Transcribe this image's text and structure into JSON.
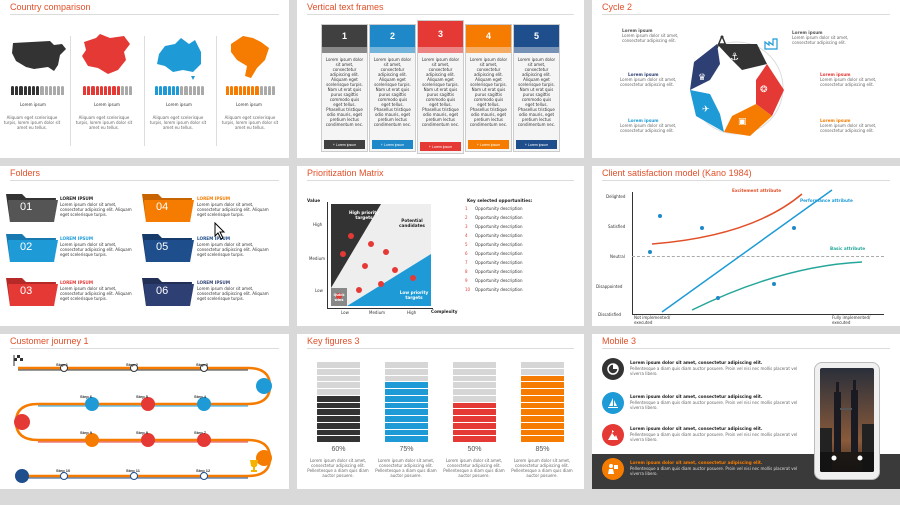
{
  "slides": [
    {
      "title": "Country comparison",
      "labels": [
        "Lorem ipsum",
        "Lorem ipsum",
        "Lorem ipsum",
        "Lorem ipsum"
      ],
      "desc": "Aliquam eget scelerisque turpis, lorem ipsum dolor sit amet eu tellus.",
      "colors": [
        "#333333",
        "#e53935",
        "#1e9bd7",
        "#f57c00"
      ]
    },
    {
      "title": "Vertical text frames",
      "columns": [
        {
          "num": "1",
          "color": "#404040"
        },
        {
          "num": "2",
          "color": "#1e88c8"
        },
        {
          "num": "3",
          "color": "#e53935"
        },
        {
          "num": "4",
          "color": "#f57c00"
        },
        {
          "num": "5",
          "color": "#1f4e8c"
        }
      ],
      "body": "Lorem ipsum dolor sit amet, consectetur adipiscing elit. Aliquam eget scelerisque turpis. Nam ut erat quis purus sagittis commodo quis eget tellus. Phasellus tristique odio mauris, eget pretium lectus condimentum nec.",
      "button": "+ Lorem ipsum"
    },
    {
      "title": "Cycle 2",
      "item": "Lorem ipsum dolor sit amet, consectetur adipiscing elit.",
      "label": "Lorem ipsum"
    },
    {
      "title": "Folders",
      "folders": [
        {
          "num": "01",
          "color": "#333333"
        },
        {
          "num": "02",
          "color": "#1e9bd7"
        },
        {
          "num": "03",
          "color": "#e53935"
        },
        {
          "num": "04",
          "color": "#f57c00"
        },
        {
          "num": "05",
          "color": "#1f4e8c"
        },
        {
          "num": "06",
          "color": "#2e3f73"
        }
      ],
      "heading": "LOREM IPSUM",
      "body": "Lorem ipsum dolor sit amet, consectetur adipiscing elit. Aliquam eget scelerisque turpis."
    },
    {
      "title": "Prioritization Matrix",
      "yaxis": "Value",
      "xaxis": "Complexity",
      "ylevels": [
        "High",
        "Medium",
        "Low"
      ],
      "xlevels": [
        "Low",
        "Medium",
        "High"
      ],
      "q_high": "High priority targets",
      "q_pot": "Potential candidates",
      "q_quick": "Quick wins",
      "q_low": "Low priority targets",
      "key": "Key selected opportunities:",
      "opps": [
        "Opportunity description",
        "Opportunity description",
        "Opportunity description",
        "Opportunity description",
        "Opportunity description",
        "Opportunity description",
        "Opportunity description",
        "Opportunity description",
        "Opportunity description",
        "Opportunity description"
      ]
    },
    {
      "title": "Client satisfaction model (Kano 1984)",
      "ylabels": [
        "Delighted",
        "Satisfied",
        "Neutral",
        "Disappointed",
        "Dissatisfied"
      ],
      "x_left": "Not implemented/ executed",
      "x_right": "Fully implemented/ executed",
      "excitement": "Excitement attribute",
      "performance": "Performance attribute",
      "basic": "Basic attribute"
    },
    {
      "title": "Customer journey 1",
      "steps": [
        "Step 1",
        "Step 2",
        "Step 3",
        "Step 4",
        "Step 5",
        "Step 6",
        "Step 7",
        "Step 8",
        "Step 9",
        "Step 10",
        "Step 11",
        "Step 12"
      ]
    },
    {
      "title": "Key figures 3",
      "figures": [
        {
          "pct": "60%",
          "color": "#333333",
          "fill": 0.6
        },
        {
          "pct": "75%",
          "color": "#1e9bd7",
          "fill": 0.75
        },
        {
          "pct": "50%",
          "color": "#e53935",
          "fill": 0.5
        },
        {
          "pct": "85%",
          "color": "#f57c00",
          "fill": 0.85
        }
      ],
      "body": "Lorem ipsum dolor sit amet, consectetur adipiscing elit. Pellentesque a diam quis diam auctor posuere."
    },
    {
      "title": "Mobile 3",
      "heading": "Lorem ipsum dolor sit amet, consectetur adipiscing elit.",
      "body": "Pellentesque a diam quis diam auctor posuere. Proin vel nisi nec mollis placerat vel viverra libero.",
      "colors": [
        "#333333",
        "#1e9bd7",
        "#e53935",
        "#f57c00"
      ]
    }
  ]
}
